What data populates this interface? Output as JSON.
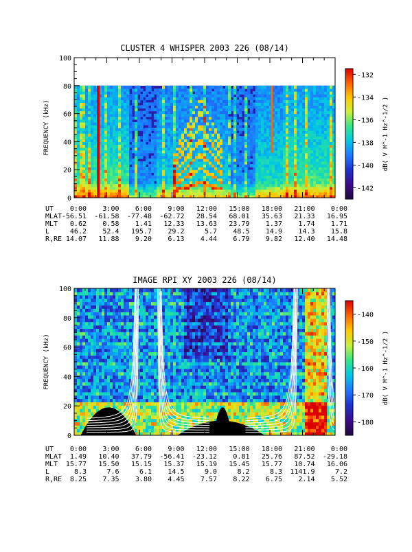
{
  "chart_data": [
    {
      "type": "heatmap",
      "title": "CLUSTER 4 WHISPER 2003 226 (08/14)",
      "xlabel": "UT",
      "ylabel": "FREQUENCY (kHz)",
      "xlim": [
        0,
        24
      ],
      "ylim": [
        0,
        100
      ],
      "data_max_frequency": 80,
      "yticks": [
        "0",
        "20",
        "40",
        "60",
        "80",
        "100"
      ],
      "colorbar": {
        "label": "dB( V M^-1 Hz^-1/2 )",
        "range": [
          -143,
          -131.5
        ],
        "ticks": [
          "-132",
          "-134",
          "-136",
          "-138",
          "-140",
          "-142"
        ]
      },
      "x_tick_labels": [
        "0:00",
        "3:00",
        "6:00",
        "9:00",
        "12:00",
        "15:00",
        "18:00",
        "21:00",
        "0:00"
      ],
      "ephemeris": [
        {
          "label": "MLAT",
          "values": [
            "-56.51",
            "-61.58",
            "-77.48",
            "-62.72",
            "28.54",
            "68.01",
            "35.63",
            "21.33",
            "16.95"
          ]
        },
        {
          "label": "MLT",
          "values": [
            "0.62",
            "0.58",
            "1.41",
            "12.33",
            "13.63",
            "23.79",
            "1.37",
            "1.74",
            "1.71"
          ]
        },
        {
          "label": "L",
          "values": [
            "46.2",
            "52.4",
            "195.7",
            "29.2",
            "5.7",
            "48.5",
            "14.9",
            "14.3",
            "15.8"
          ]
        },
        {
          "label": "R,RE",
          "values": [
            "14.07",
            "11.88",
            "9.20",
            "6.13",
            "4.44",
            "6.79",
            "9.82",
            "12.40",
            "14.48"
          ]
        }
      ]
    },
    {
      "type": "heatmap",
      "title": "IMAGE RPI XY 2003 226 (08/14)",
      "xlabel": "UT",
      "ylabel": "FREQUENCY (kHz)",
      "xlim": [
        0,
        24
      ],
      "ylim": [
        0,
        100
      ],
      "yticks": [
        "0",
        "20",
        "40",
        "60",
        "80",
        "100"
      ],
      "colorbar": {
        "label": "dB( V M^-1 Hz^-1/2 )",
        "range": [
          -185,
          -135
        ],
        "ticks": [
          "-140",
          "-150",
          "-160",
          "-170",
          "-180"
        ]
      },
      "x_tick_labels": [
        "0:00",
        "3:00",
        "6:00",
        "9:00",
        "12:00",
        "15:00",
        "18:00",
        "21:00",
        "0:00"
      ],
      "ephemeris": [
        {
          "label": "MLAT",
          "values": [
            "1.49",
            "10.40",
            "37.79",
            "-56.41",
            "-23.12",
            "0.81",
            "25.76",
            "87.52",
            "-29.18"
          ]
        },
        {
          "label": "MLT",
          "values": [
            "15.77",
            "15.50",
            "15.15",
            "15.37",
            "15.19",
            "15.45",
            "15.77",
            "10.74",
            "16.06"
          ]
        },
        {
          "label": "L",
          "values": [
            "8.3",
            "7.6",
            "6.1",
            "14.5",
            "9.0",
            "8.2",
            "8.3",
            "1141.9",
            "7.2"
          ]
        },
        {
          "label": "R,RE",
          "values": [
            "8.25",
            "7.35",
            "3.80",
            "4.45",
            "7.57",
            "8.22",
            "6.75",
            "2.14",
            "5.52"
          ]
        }
      ]
    }
  ],
  "colors": {
    "cmap": [
      "#1e0a3c",
      "#3c0a8c",
      "#1e32c8",
      "#1e78ff",
      "#00c8e6",
      "#32e68c",
      "#c8f03c",
      "#ffc800",
      "#ff6400",
      "#dc0000"
    ],
    "curves": "#ffffff",
    "background": "#ffffff"
  }
}
